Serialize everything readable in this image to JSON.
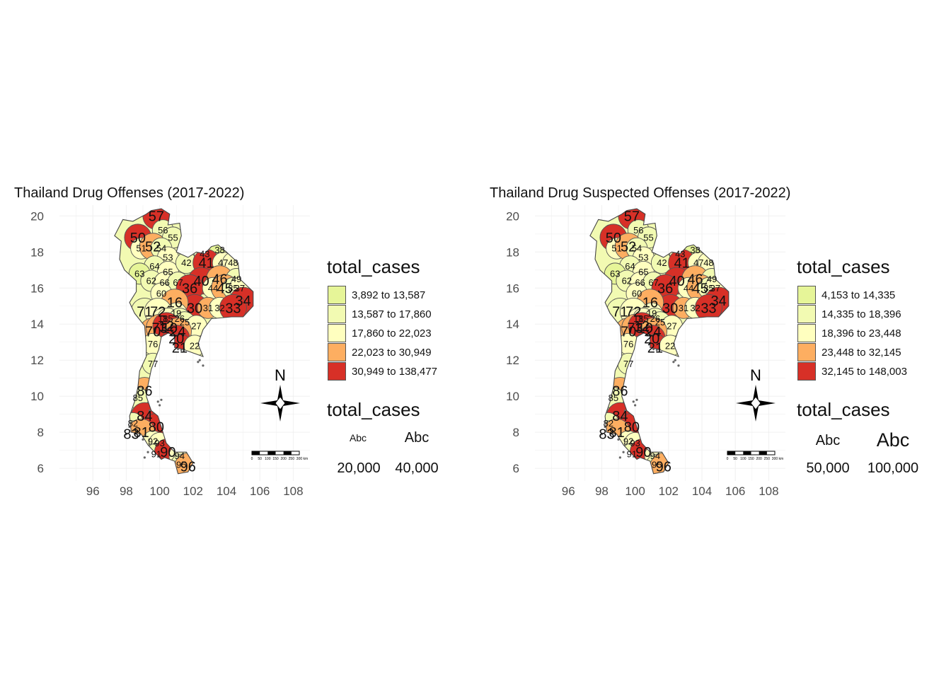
{
  "colors": {
    "c1": "#e6f598",
    "c2": "#f2fab2",
    "c3": "#ffffbf",
    "c4": "#fdae61",
    "c5": "#d73027",
    "border": "#555555",
    "grid": "#f0f0f0",
    "axis_text": "#4d4d4d"
  },
  "axes": {
    "y_ticks": [
      "20",
      "18",
      "16",
      "14",
      "12",
      "10",
      "8",
      "6"
    ],
    "x_ticks": [
      "96",
      "98",
      "100",
      "102",
      "104",
      "106",
      "108"
    ],
    "xlim": [
      94,
      109
    ],
    "ylim": [
      5.3,
      20.6
    ]
  },
  "map_labels": [
    {
      "code": "57",
      "lon": 99.8,
      "lat": 20.0,
      "big": true
    },
    {
      "code": "56",
      "lon": 100.2,
      "lat": 19.2,
      "big": false
    },
    {
      "code": "55",
      "lon": 100.8,
      "lat": 18.8,
      "big": false
    },
    {
      "code": "50",
      "lon": 98.7,
      "lat": 18.8,
      "big": true
    },
    {
      "code": "51",
      "lon": 98.9,
      "lat": 18.2,
      "big": false
    },
    {
      "code": "52",
      "lon": 99.6,
      "lat": 18.3,
      "big": true
    },
    {
      "code": "54",
      "lon": 100.1,
      "lat": 18.2,
      "big": false
    },
    {
      "code": "53",
      "lon": 100.5,
      "lat": 17.7,
      "big": false
    },
    {
      "code": "64",
      "lon": 99.7,
      "lat": 17.2,
      "big": false
    },
    {
      "code": "65",
      "lon": 100.5,
      "lat": 16.9,
      "big": false
    },
    {
      "code": "63",
      "lon": 98.8,
      "lat": 16.8,
      "big": false
    },
    {
      "code": "62",
      "lon": 99.5,
      "lat": 16.4,
      "big": false
    },
    {
      "code": "66",
      "lon": 100.3,
      "lat": 16.3,
      "big": false
    },
    {
      "code": "67",
      "lon": 101.1,
      "lat": 16.3,
      "big": false
    },
    {
      "code": "60",
      "lon": 100.1,
      "lat": 15.7,
      "big": false
    },
    {
      "code": "42",
      "lon": 101.6,
      "lat": 17.4,
      "big": false
    },
    {
      "code": "43",
      "lon": 102.7,
      "lat": 17.9,
      "big": false
    },
    {
      "code": "38",
      "lon": 103.6,
      "lat": 18.1,
      "big": false
    },
    {
      "code": "41",
      "lon": 102.8,
      "lat": 17.4,
      "big": true
    },
    {
      "code": "47",
      "lon": 103.8,
      "lat": 17.4,
      "big": false
    },
    {
      "code": "48",
      "lon": 104.4,
      "lat": 17.4,
      "big": false
    },
    {
      "code": "40",
      "lon": 102.5,
      "lat": 16.4,
      "big": true
    },
    {
      "code": "36",
      "lon": 101.8,
      "lat": 16.0,
      "big": true
    },
    {
      "code": "46",
      "lon": 103.6,
      "lat": 16.5,
      "big": true
    },
    {
      "code": "49",
      "lon": 104.6,
      "lat": 16.5,
      "big": false
    },
    {
      "code": "44",
      "lon": 103.2,
      "lat": 16.0,
      "big": false
    },
    {
      "code": "45",
      "lon": 103.9,
      "lat": 16.0,
      "big": true
    },
    {
      "code": "35",
      "lon": 104.4,
      "lat": 16.0,
      "big": false
    },
    {
      "code": "37",
      "lon": 104.8,
      "lat": 16.0,
      "big": false
    },
    {
      "code": "34",
      "lon": 105.0,
      "lat": 15.3,
      "big": true
    },
    {
      "code": "30",
      "lon": 102.1,
      "lat": 14.9,
      "big": true
    },
    {
      "code": "31",
      "lon": 102.9,
      "lat": 14.9,
      "big": false
    },
    {
      "code": "32",
      "lon": 103.6,
      "lat": 14.9,
      "big": false
    },
    {
      "code": "33",
      "lon": 104.4,
      "lat": 14.9,
      "big": true
    },
    {
      "code": "16",
      "lon": 100.9,
      "lat": 15.2,
      "big": true
    },
    {
      "code": "71",
      "lon": 99.1,
      "lat": 14.7,
      "big": true
    },
    {
      "code": "72",
      "lon": 99.9,
      "lat": 14.7,
      "big": true
    },
    {
      "code": "19",
      "lon": 101.0,
      "lat": 14.6,
      "big": false
    },
    {
      "code": "18",
      "lon": 100.2,
      "lat": 14.3,
      "big": false
    },
    {
      "code": "15",
      "lon": 100.5,
      "lat": 14.3,
      "big": false
    },
    {
      "code": "26",
      "lon": 101.2,
      "lat": 14.3,
      "big": false
    },
    {
      "code": "25",
      "lon": 101.5,
      "lat": 14.1,
      "big": false
    },
    {
      "code": "27",
      "lon": 102.2,
      "lat": 13.9,
      "big": false
    },
    {
      "code": "70",
      "lon": 99.6,
      "lat": 13.6,
      "big": true
    },
    {
      "code": "73",
      "lon": 100.0,
      "lat": 13.8,
      "big": true
    },
    {
      "code": "10",
      "lon": 100.6,
      "lat": 13.8,
      "big": true
    },
    {
      "code": "12",
      "lon": 100.4,
      "lat": 13.9,
      "big": true
    },
    {
      "code": "24",
      "lon": 101.1,
      "lat": 13.6,
      "big": true
    },
    {
      "code": "20",
      "lon": 101.0,
      "lat": 13.2,
      "big": true
    },
    {
      "code": "21",
      "lon": 101.2,
      "lat": 12.7,
      "big": true
    },
    {
      "code": "22",
      "lon": 102.1,
      "lat": 12.8,
      "big": false
    },
    {
      "code": "76",
      "lon": 99.6,
      "lat": 12.9,
      "big": false
    },
    {
      "code": "77",
      "lon": 99.6,
      "lat": 11.8,
      "big": false
    },
    {
      "code": "86",
      "lon": 99.1,
      "lat": 10.3,
      "big": true
    },
    {
      "code": "85",
      "lon": 98.7,
      "lat": 9.9,
      "big": false
    },
    {
      "code": "84",
      "lon": 99.1,
      "lat": 8.9,
      "big": true
    },
    {
      "code": "82",
      "lon": 98.4,
      "lat": 8.5,
      "big": false
    },
    {
      "code": "80",
      "lon": 99.8,
      "lat": 8.3,
      "big": true
    },
    {
      "code": "83",
      "lon": 98.3,
      "lat": 7.9,
      "big": true
    },
    {
      "code": "81",
      "lon": 98.9,
      "lat": 8.0,
      "big": true
    },
    {
      "code": "92",
      "lon": 99.6,
      "lat": 7.5,
      "big": false
    },
    {
      "code": "93",
      "lon": 100.0,
      "lat": 7.4,
      "big": false
    },
    {
      "code": "91",
      "lon": 99.8,
      "lat": 6.8,
      "big": false
    },
    {
      "code": "90",
      "lon": 100.5,
      "lat": 6.9,
      "big": true
    },
    {
      "code": "94",
      "lon": 101.2,
      "lat": 6.7,
      "big": false
    },
    {
      "code": "95",
      "lon": 101.3,
      "lat": 6.2,
      "big": false
    },
    {
      "code": "96",
      "lon": 101.7,
      "lat": 6.1,
      "big": true
    }
  ],
  "panels": [
    {
      "title": "Thailand Drug Offenses (2017-2022)",
      "legend_fill_title": "total_cases",
      "legend_fill": [
        {
          "label": "3,892 to 13,587",
          "color": "#e6f598"
        },
        {
          "label": "13,587 to 17,860",
          "color": "#f2fab2"
        },
        {
          "label": "17,860 to 22,023",
          "color": "#ffffbf"
        },
        {
          "label": "22,023 to 30,949",
          "color": "#fdae61"
        },
        {
          "label": "30,949 to 138,477",
          "color": "#d73027"
        }
      ],
      "legend_size_title": "total_cases",
      "legend_size": [
        {
          "sample": "Abc",
          "value": "20,000"
        },
        {
          "sample": "Abc",
          "value": "40,000"
        }
      ],
      "north_label": "N",
      "scalebar_ticks": [
        "0",
        "50",
        "100",
        "150",
        "200",
        "250",
        "300 km"
      ],
      "fills": {
        "57": "c5",
        "56": "c2",
        "55": "c2",
        "50": "c5",
        "51": "c3",
        "52": "c4",
        "54": "c2",
        "53": "c3",
        "64": "c2",
        "65": "c3",
        "63": "c1",
        "62": "c2",
        "66": "c3",
        "67": "c2",
        "60": "c3",
        "42": "c2",
        "43": "c3",
        "38": "c1",
        "41": "c5",
        "47": "c3",
        "48": "c3",
        "40": "c5",
        "36": "c5",
        "46": "c4",
        "49": "c2",
        "44": "c3",
        "45": "c4",
        "35": "c2",
        "37": "c3",
        "34": "c5",
        "30": "c5",
        "31": "c4",
        "32": "c3",
        "33": "c5",
        "16": "c4",
        "71": "c2",
        "72": "c3",
        "19": "c3",
        "18": "c3",
        "15": "c3",
        "26": "c2",
        "25": "c2",
        "27": "c3",
        "70": "c4",
        "73": "c4",
        "10": "c5",
        "12": "c5",
        "24": "c4",
        "20": "c5",
        "21": "c5",
        "22": "c3",
        "76": "c3",
        "77": "c2",
        "86": "c4",
        "85": "c2",
        "84": "c5",
        "82": "c2",
        "80": "c5",
        "83": "c3",
        "81": "c4",
        "92": "c3",
        "93": "c3",
        "91": "c2",
        "90": "c5",
        "94": "c3",
        "95": "c2",
        "96": "c4"
      }
    },
    {
      "title": "Thailand Drug Suspected Offenses (2017-2022)",
      "legend_fill_title": "total_cases",
      "legend_fill": [
        {
          "label": "4,153 to 14,335",
          "color": "#e6f598"
        },
        {
          "label": "14,335 to 18,396",
          "color": "#f2fab2"
        },
        {
          "label": "18,396 to 23,448",
          "color": "#ffffbf"
        },
        {
          "label": "23,448 to 32,145",
          "color": "#fdae61"
        },
        {
          "label": "32,145 to 148,003",
          "color": "#d73027"
        }
      ],
      "legend_size_title": "total_cases",
      "legend_size": [
        {
          "sample": "Abc",
          "value": "50,000"
        },
        {
          "sample": "Abc",
          "value": "100,000"
        }
      ],
      "north_label": "N",
      "scalebar_ticks": [
        "0",
        "50",
        "100",
        "150",
        "200",
        "250",
        "300 km"
      ],
      "fills": {
        "57": "c5",
        "56": "c2",
        "55": "c2",
        "50": "c5",
        "51": "c3",
        "52": "c4",
        "54": "c2",
        "53": "c3",
        "64": "c2",
        "65": "c3",
        "63": "c1",
        "62": "c2",
        "66": "c3",
        "67": "c2",
        "60": "c3",
        "42": "c2",
        "43": "c3",
        "38": "c1",
        "41": "c5",
        "47": "c3",
        "48": "c3",
        "40": "c5",
        "36": "c5",
        "46": "c4",
        "49": "c2",
        "44": "c3",
        "45": "c4",
        "35": "c2",
        "37": "c3",
        "34": "c5",
        "30": "c5",
        "31": "c4",
        "32": "c3",
        "33": "c5",
        "16": "c4",
        "71": "c2",
        "72": "c3",
        "19": "c3",
        "18": "c3",
        "15": "c3",
        "26": "c2",
        "25": "c2",
        "27": "c3",
        "70": "c4",
        "73": "c4",
        "10": "c5",
        "12": "c5",
        "24": "c4",
        "20": "c5",
        "21": "c5",
        "22": "c3",
        "76": "c3",
        "77": "c2",
        "86": "c4",
        "85": "c2",
        "84": "c5",
        "82": "c2",
        "80": "c5",
        "83": "c3",
        "81": "c4",
        "92": "c3",
        "93": "c3",
        "91": "c2",
        "90": "c5",
        "94": "c3",
        "95": "c2",
        "96": "c4"
      }
    }
  ]
}
